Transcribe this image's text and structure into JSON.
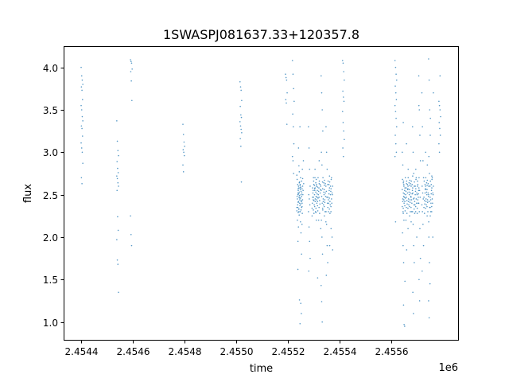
{
  "chart_data": {
    "type": "scatter",
    "title": "1SWASPJ081637.33+120357.8",
    "xlabel": "time",
    "ylabel": "flux",
    "x_offset_label": "1e6",
    "xlim": [
      2454335,
      2455859
    ],
    "ylim": [
      0.79,
      4.25
    ],
    "grid": false,
    "x_ticks": [
      {
        "value": 2454400,
        "label": "2.4544"
      },
      {
        "value": 2454600,
        "label": "2.4546"
      },
      {
        "value": 2454800,
        "label": "2.4548"
      },
      {
        "value": 2455000,
        "label": "2.4550"
      },
      {
        "value": 2455200,
        "label": "2.4552"
      },
      {
        "value": 2455400,
        "label": "2.4554"
      },
      {
        "value": 2455600,
        "label": "2.4556"
      }
    ],
    "y_ticks": [
      {
        "value": 1.0,
        "label": "1.0"
      },
      {
        "value": 1.5,
        "label": "1.5"
      },
      {
        "value": 2.0,
        "label": "2.0"
      },
      {
        "value": 2.5,
        "label": "2.5"
      },
      {
        "value": 3.0,
        "label": "3.0"
      },
      {
        "value": 3.5,
        "label": "3.5"
      },
      {
        "value": 4.0,
        "label": "4.0"
      }
    ],
    "series": [
      {
        "color": "#1f77b4",
        "columns": [
          {
            "time": 2454403,
            "flux": [
              4.0,
              3.9,
              3.85,
              3.8,
              3.77,
              3.73,
              3.62,
              3.55,
              3.5,
              3.42,
              3.37,
              3.31,
              3.28,
              3.19,
              3.11,
              3.05,
              3.0,
              2.87,
              2.7,
              2.63
            ]
          },
          {
            "time": 2454541,
            "flux": [
              3.37,
              3.13,
              3.02,
              2.96,
              2.89,
              2.81,
              2.76,
              2.72,
              2.69,
              2.64,
              2.6,
              2.55,
              2.24,
              2.08,
              1.97,
              1.73,
              1.68,
              1.35
            ]
          },
          {
            "time": 2454594,
            "flux": [
              4.09,
              4.07,
              4.05,
              3.98,
              3.95,
              3.84,
              3.61,
              2.25,
              2.03,
              1.9
            ]
          },
          {
            "time": 2454797,
            "flux": [
              3.33,
              3.21,
              3.12,
              3.07,
              3.03,
              3.0,
              2.96,
              2.85,
              2.77
            ]
          },
          {
            "time": 2455018,
            "flux": [
              3.83,
              3.77,
              3.73,
              3.61,
              3.54,
              3.44,
              3.41,
              3.36,
              3.31,
              3.27,
              3.23,
              3.16,
              3.07,
              2.65
            ]
          },
          {
            "time": 2455194,
            "flux": [
              3.92,
              3.88,
              3.85,
              3.7,
              3.62,
              3.58,
              3.33
            ]
          },
          {
            "time": 2455221,
            "flux": [
              4.08,
              3.92,
              3.75,
              3.6,
              3.45,
              3.3,
              3.1,
              2.95,
              2.9,
              2.75
            ]
          },
          {
            "time": 2455238,
            "flux": [
              2.31,
              2.45,
              2.52,
              2.6,
              2.68,
              2.38,
              2.55,
              2.73,
              2.2,
              1.95,
              3.05,
              2.48,
              2.62,
              2.41,
              2.35
            ]
          },
          {
            "time": 2455242,
            "flux": [
              2.35,
              2.42,
              2.58,
              2.65,
              2.29,
              2.51,
              2.77,
              1.62,
              2.12,
              2.47,
              2.4,
              2.57,
              2.33,
              2.64,
              2.5
            ]
          },
          {
            "time": 2455246,
            "flux": [
              2.33,
              2.49,
              2.61,
              2.7,
              2.26,
              2.44,
              2.56,
              2.84,
              1.26,
              0.98,
              2.39,
              2.53,
              2.46,
              2.58,
              2.3
            ]
          },
          {
            "time": 2455250,
            "flux": [
              2.37,
              2.46,
              2.54,
              2.66,
              2.3,
              2.59,
              2.42,
              3.3,
              2.18,
              2.5,
              2.35,
              2.62,
              1.22,
              1.1
            ]
          },
          {
            "time": 2455254,
            "flux": [
              2.32,
              2.48,
              2.57,
              2.69,
              2.43,
              2.52,
              2.8,
              2.05,
              1.8,
              2.4,
              2.6
            ]
          },
          {
            "time": 2455258,
            "flux": [
              2.36,
              2.44,
              2.55,
              2.63,
              2.28,
              2.5,
              2.9,
              2.15
            ]
          },
          {
            "time": 2455283,
            "flux": [
              3.3,
              3.05,
              2.8,
              2.6,
              2.5,
              2.45,
              2.38,
              2.3,
              2.12,
              1.95,
              1.75,
              1.6
            ]
          },
          {
            "time": 2455297,
            "flux": [
              2.34,
              2.47,
              2.55,
              2.62,
              2.4,
              2.52,
              2.7,
              2.25,
              2.58,
              2.44
            ]
          },
          {
            "time": 2455302,
            "flux": [
              2.32,
              2.43,
              2.5,
              2.58,
              2.66,
              2.38,
              2.55,
              2.47,
              2.28,
              2.61,
              2.8
            ]
          },
          {
            "time": 2455307,
            "flux": [
              2.36,
              2.45,
              2.53,
              2.6,
              2.7,
              2.3,
              2.48,
              2.57,
              2.42,
              2.64,
              2.2
            ]
          },
          {
            "time": 2455312,
            "flux": [
              2.34,
              2.44,
              2.51,
              2.59,
              2.68,
              2.4,
              2.55,
              2.29,
              2.62,
              2.47,
              1.52
            ]
          },
          {
            "time": 2455318,
            "flux": [
              2.37,
              2.46,
              2.54,
              2.63,
              2.31,
              2.5,
              2.58,
              2.42,
              2.7,
              2.2,
              2.9
            ]
          },
          {
            "time": 2455324,
            "flux": [
              2.35,
              2.43,
              2.52,
              2.6,
              2.66,
              2.39,
              2.56,
              2.47,
              2.28,
              2.62,
              2.1
            ]
          },
          {
            "time": 2455332,
            "flux": [
              3.9,
              3.7,
              3.5,
              3.25,
              3.0,
              2.85,
              2.65,
              2.55,
              2.48,
              2.4,
              2.32,
              2.2,
              2.0,
              1.8,
              1.43,
              1.24,
              1.0
            ]
          },
          {
            "time": 2455338,
            "flux": [
              2.34,
              2.45,
              2.53,
              2.61,
              2.7,
              2.38,
              2.5,
              2.57,
              2.42,
              2.64,
              2.25
            ]
          },
          {
            "time": 2455344,
            "flux": [
              2.36,
              2.44,
              2.52,
              2.6,
              2.67,
              2.3,
              2.48,
              2.56,
              2.41,
              2.63,
              2.18
            ]
          },
          {
            "time": 2455351,
            "flux": [
              3.3,
              3.0,
              2.8,
              2.62,
              2.54,
              2.47,
              2.4,
              2.3,
              2.15,
              1.9,
              1.7,
              1.55
            ]
          },
          {
            "time": 2455358,
            "flux": [
              2.35,
              2.44,
              2.51,
              2.58,
              2.66,
              2.4,
              2.55,
              2.47,
              2.3,
              2.62,
              2.72
            ]
          },
          {
            "time": 2455364,
            "flux": [
              2.33,
              2.42,
              2.5,
              2.57,
              2.65,
              2.38,
              2.54,
              2.46,
              2.28,
              2.6,
              2.1,
              1.9
            ]
          },
          {
            "time": 2455370,
            "flux": [
              2.36,
              2.45,
              2.52,
              2.6,
              2.68,
              2.4,
              2.5,
              2.3,
              2.7,
              2.0,
              1.85
            ]
          },
          {
            "time": 2455415,
            "flux": [
              4.08,
              4.05,
              3.95,
              3.85,
              3.72,
              3.65,
              3.6,
              3.48,
              3.35,
              3.25,
              3.15,
              3.05,
              2.95
            ]
          },
          {
            "time": 2455618,
            "flux": [
              4.08,
              4.0,
              3.92,
              3.85,
              3.78,
              3.7,
              3.62,
              3.55,
              3.48,
              3.4,
              3.3,
              3.2,
              3.1,
              3.0,
              2.95,
              2.18
            ]
          },
          {
            "time": 2455646,
            "flux": [
              2.36,
              2.45,
              2.52,
              2.6,
              2.68,
              2.3,
              2.48,
              2.56,
              2.42,
              2.64,
              2.2,
              2.05,
              1.9,
              1.7,
              3.0,
              2.85
            ]
          },
          {
            "time": 2455650,
            "flux": [
              2.34,
              2.44,
              2.51,
              2.58,
              2.66,
              2.4,
              2.55,
              2.28,
              2.62,
              2.47,
              1.48,
              1.2,
              0.97,
              0.95,
              3.35
            ]
          },
          {
            "time": 2455656,
            "flux": [
              2.37,
              2.46,
              2.54,
              2.63,
              2.31,
              2.5,
              2.58,
              2.42,
              2.7,
              2.2,
              3.1
            ]
          },
          {
            "time": 2455662,
            "flux": [
              2.35,
              2.43,
              2.52,
              2.6,
              2.66,
              2.39,
              2.56,
              2.47,
              2.28,
              2.62,
              2.1,
              1.85
            ]
          },
          {
            "time": 2455668,
            "flux": [
              2.34,
              2.45,
              2.53,
              2.61,
              2.7,
              2.38,
              2.5,
              2.57,
              2.42,
              2.64,
              2.25,
              2.8
            ]
          },
          {
            "time": 2455674,
            "flux": [
              2.36,
              2.44,
              2.52,
              2.6,
              2.67,
              2.3,
              2.48,
              2.56,
              2.41,
              2.63,
              2.18
            ]
          },
          {
            "time": 2455680,
            "flux": [
              2.35,
              2.44,
              2.51,
              2.58,
              2.66,
              2.4,
              2.55,
              2.47,
              2.3,
              2.62,
              2.72
            ]
          },
          {
            "time": 2455686,
            "flux": [
              3.3,
              3.0,
              2.75,
              2.6,
              2.52,
              2.45,
              2.38,
              2.3,
              2.15,
              1.9,
              1.7,
              1.35,
              1.1
            ]
          },
          {
            "time": 2455692,
            "flux": [
              2.33,
              2.42,
              2.5,
              2.57,
              2.65,
              2.38,
              2.54,
              2.46,
              2.28,
              2.6,
              2.8
            ]
          },
          {
            "time": 2455698,
            "flux": [
              2.36,
              2.45,
              2.52,
              2.6,
              2.68,
              2.4,
              2.5,
              2.3,
              2.7,
              2.0
            ]
          },
          {
            "time": 2455704,
            "flux": [
              2.34,
              2.44,
              2.51,
              2.58,
              2.66,
              2.4,
              2.55,
              2.28,
              2.62,
              2.47,
              3.55
            ]
          },
          {
            "time": 2455710,
            "flux": [
              3.9,
              3.5,
              3.2,
              2.9,
              2.7,
              2.55,
              2.47,
              2.4,
              2.3,
              2.1,
              1.75,
              1.5,
              1.25
            ]
          },
          {
            "time": 2455722,
            "flux": [
              3.7,
              3.3,
              2.9,
              2.7,
              2.6,
              2.52,
              2.45,
              2.38,
              2.3,
              2.15,
              1.9,
              1.6
            ]
          },
          {
            "time": 2455730,
            "flux": [
              2.35,
              2.43,
              2.52,
              2.6,
              2.66,
              2.39,
              2.56,
              2.47,
              2.28,
              2.62,
              3.0
            ]
          },
          {
            "time": 2455736,
            "flux": [
              2.34,
              2.45,
              2.53,
              2.61,
              2.7,
              2.38,
              2.5,
              2.57,
              2.42,
              2.64,
              2.25
            ]
          },
          {
            "time": 2455742,
            "flux": [
              2.36,
              2.44,
              2.52,
              2.6,
              2.67,
              2.3,
              2.48,
              2.56,
              2.41,
              2.63,
              2.18,
              2.85
            ]
          },
          {
            "time": 2455748,
            "flux": [
              4.1,
              3.85,
              3.5,
              3.2,
              2.95,
              2.75,
              2.6,
              2.5,
              2.42,
              2.35,
              2.25,
              2.0,
              1.7,
              1.45,
              1.25,
              1.05
            ]
          },
          {
            "time": 2455754,
            "flux": [
              2.35,
              2.44,
              2.51,
              2.58,
              2.66,
              2.4,
              2.55,
              2.47,
              2.3,
              2.62,
              2.72,
              3.4
            ]
          },
          {
            "time": 2455760,
            "flux": [
              2.36,
              2.45,
              2.52,
              2.6,
              2.68,
              2.4,
              2.5,
              2.3,
              2.7,
              2.0,
              3.7
            ]
          },
          {
            "time": 2455788,
            "flux": [
              3.6,
              3.55,
              3.5,
              3.42,
              3.35,
              3.28,
              3.2,
              3.1,
              3.0,
              3.9
            ]
          }
        ]
      }
    ]
  }
}
